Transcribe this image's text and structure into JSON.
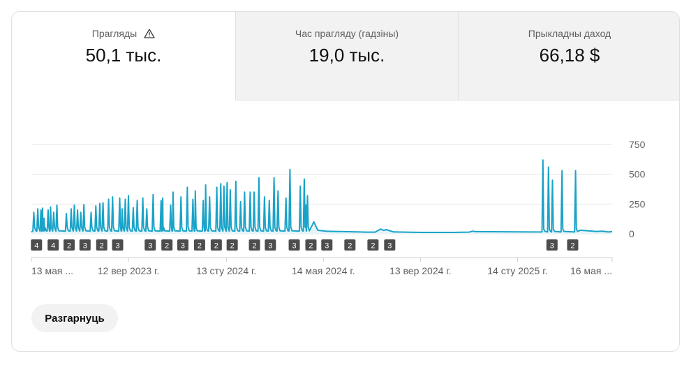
{
  "tabs": [
    {
      "label": "Прагляды",
      "value": "50,1 тыс.",
      "icon": "warning-icon",
      "active": true
    },
    {
      "label": "Час прагляду (гадзіны)",
      "value": "19,0 тыс.",
      "active": false
    },
    {
      "label": "Прыкладны даход",
      "value": "66,18 $",
      "active": false
    }
  ],
  "expand_button": "Разгарнуць",
  "colors": {
    "line": "#1aa3c9",
    "area": "#e6f4f8",
    "grid": "#e5e5e5",
    "marker": "#4d4d4d",
    "tab_inactive": "#f2f2f2"
  },
  "chart_data": {
    "type": "line",
    "y_ticks": [
      "750",
      "500",
      "250",
      "0"
    ],
    "ylim": [
      0,
      750
    ],
    "x_ticks": [
      "13 мая ...",
      "12 вер 2023 г.",
      "13 сту 2024 г.",
      "14 мая 2024 г.",
      "13 вер 2024 г.",
      "14 сту 2025 г.",
      "16 мая ..."
    ],
    "x_range_days": 730,
    "x_tick_days": [
      0,
      122,
      245,
      367,
      489,
      611,
      733
    ],
    "series": [
      {
        "baseline": 15,
        "peaks": [
          [
            3,
            180
          ],
          [
            8,
            210
          ],
          [
            12,
            200
          ],
          [
            14,
            215
          ],
          [
            16,
            130
          ],
          [
            21,
            200
          ],
          [
            24,
            225
          ],
          [
            28,
            180
          ],
          [
            32,
            240
          ],
          [
            44,
            170
          ],
          [
            50,
            210
          ],
          [
            54,
            240
          ],
          [
            58,
            200
          ],
          [
            62,
            180
          ],
          [
            66,
            245
          ],
          [
            75,
            180
          ],
          [
            81,
            235
          ],
          [
            86,
            255
          ],
          [
            90,
            260
          ],
          [
            97,
            290
          ],
          [
            102,
            310
          ],
          [
            111,
            300
          ],
          [
            114,
            210
          ],
          [
            118,
            290
          ],
          [
            122,
            320
          ],
          [
            128,
            220
          ],
          [
            133,
            280
          ],
          [
            140,
            300
          ],
          [
            145,
            210
          ],
          [
            153,
            330
          ],
          [
            163,
            280
          ],
          [
            165,
            300
          ],
          [
            175,
            240
          ],
          [
            178,
            350
          ],
          [
            188,
            310
          ],
          [
            196,
            390
          ],
          [
            203,
            290
          ],
          [
            206,
            360
          ],
          [
            216,
            280
          ],
          [
            219,
            410
          ],
          [
            224,
            310
          ],
          [
            233,
            390
          ],
          [
            238,
            420
          ],
          [
            242,
            400
          ],
          [
            246,
            430
          ],
          [
            250,
            370
          ],
          [
            257,
            440
          ],
          [
            263,
            270
          ],
          [
            268,
            350
          ],
          [
            275,
            350
          ],
          [
            280,
            350
          ],
          [
            286,
            470
          ],
          [
            293,
            310
          ],
          [
            299,
            280
          ],
          [
            305,
            470
          ],
          [
            310,
            360
          ],
          [
            320,
            300
          ],
          [
            325,
            540
          ],
          [
            338,
            400
          ],
          [
            343,
            460
          ],
          [
            347,
            320
          ]
        ],
        "extra_points": [
          [
            345,
            240
          ],
          [
            355,
            100
          ],
          [
            360,
            30
          ],
          [
            370,
            22
          ],
          [
            380,
            20
          ],
          [
            395,
            18
          ],
          [
            410,
            16
          ],
          [
            420,
            14
          ],
          [
            432,
            14
          ],
          [
            439,
            40
          ],
          [
            443,
            28
          ],
          [
            446,
            35
          ],
          [
            455,
            16
          ],
          [
            470,
            14
          ],
          [
            490,
            12
          ],
          [
            530,
            12
          ],
          [
            550,
            14
          ],
          [
            555,
            22
          ],
          [
            558,
            18
          ]
        ],
        "late_peaks": [
          [
            643,
            620
          ],
          [
            650,
            560
          ],
          [
            655,
            450
          ],
          [
            667,
            530
          ],
          [
            684,
            530
          ]
        ],
        "late_tail": [
          [
            690,
            30
          ],
          [
            700,
            25
          ],
          [
            710,
            20
          ],
          [
            718,
            22
          ],
          [
            725,
            15
          ],
          [
            730,
            18
          ]
        ]
      }
    ],
    "annotation_markers": [
      {
        "label": "4",
        "day": 2
      },
      {
        "label": "4",
        "day": 23
      },
      {
        "label": "2",
        "day": 43
      },
      {
        "label": "3",
        "day": 63
      },
      {
        "label": "2",
        "day": 84
      },
      {
        "label": "3",
        "day": 104
      },
      {
        "label": "3",
        "day": 145
      },
      {
        "label": "2",
        "day": 166
      },
      {
        "label": "3",
        "day": 186
      },
      {
        "label": "2",
        "day": 207
      },
      {
        "label": "2",
        "day": 228
      },
      {
        "label": "2",
        "day": 248
      },
      {
        "label": "2",
        "day": 276
      },
      {
        "label": "3",
        "day": 296
      },
      {
        "label": "3",
        "day": 326
      },
      {
        "label": "2",
        "day": 347
      },
      {
        "label": "3",
        "day": 367
      },
      {
        "label": "2",
        "day": 396
      },
      {
        "label": "2",
        "day": 425
      },
      {
        "label": "3",
        "day": 446
      },
      {
        "label": "3",
        "day": 650
      },
      {
        "label": "2",
        "day": 676
      }
    ]
  }
}
